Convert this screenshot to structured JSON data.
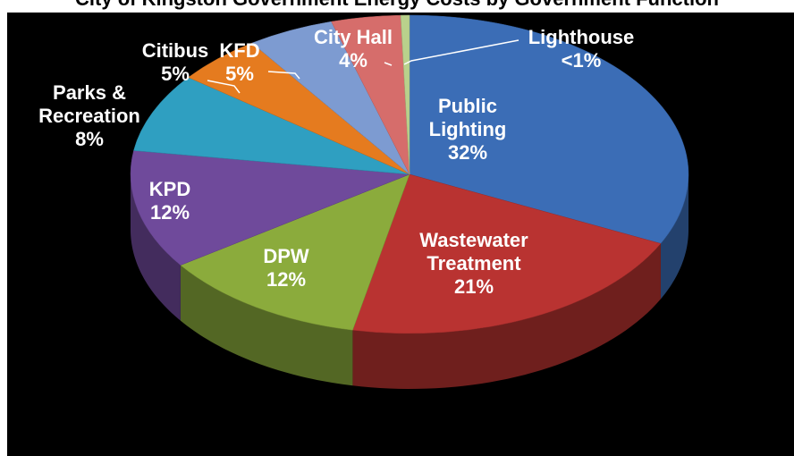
{
  "chart_data": {
    "type": "pie",
    "title": "City of Kingston Government Energy Costs by Government Function",
    "categories": [
      "Public Lighting",
      "Wastewater Treatment",
      "DPW",
      "KPD",
      "Parks & Recreation",
      "Citibus",
      "KFD",
      "City Hall",
      "Lighthouse"
    ],
    "values": [
      32,
      21,
      12,
      12,
      8,
      5,
      5,
      4,
      0.5
    ],
    "value_labels": [
      "32%",
      "21%",
      "12%",
      "12%",
      "8%",
      "5%",
      "5%",
      "4%",
      "<1%"
    ],
    "colors": [
      "#3b6db6",
      "#b93331",
      "#8bab3c",
      "#6f4a9b",
      "#2f9fc1",
      "#e57b1f",
      "#7d9bd1",
      "#d66d6b",
      "#b9d18c"
    ]
  }
}
